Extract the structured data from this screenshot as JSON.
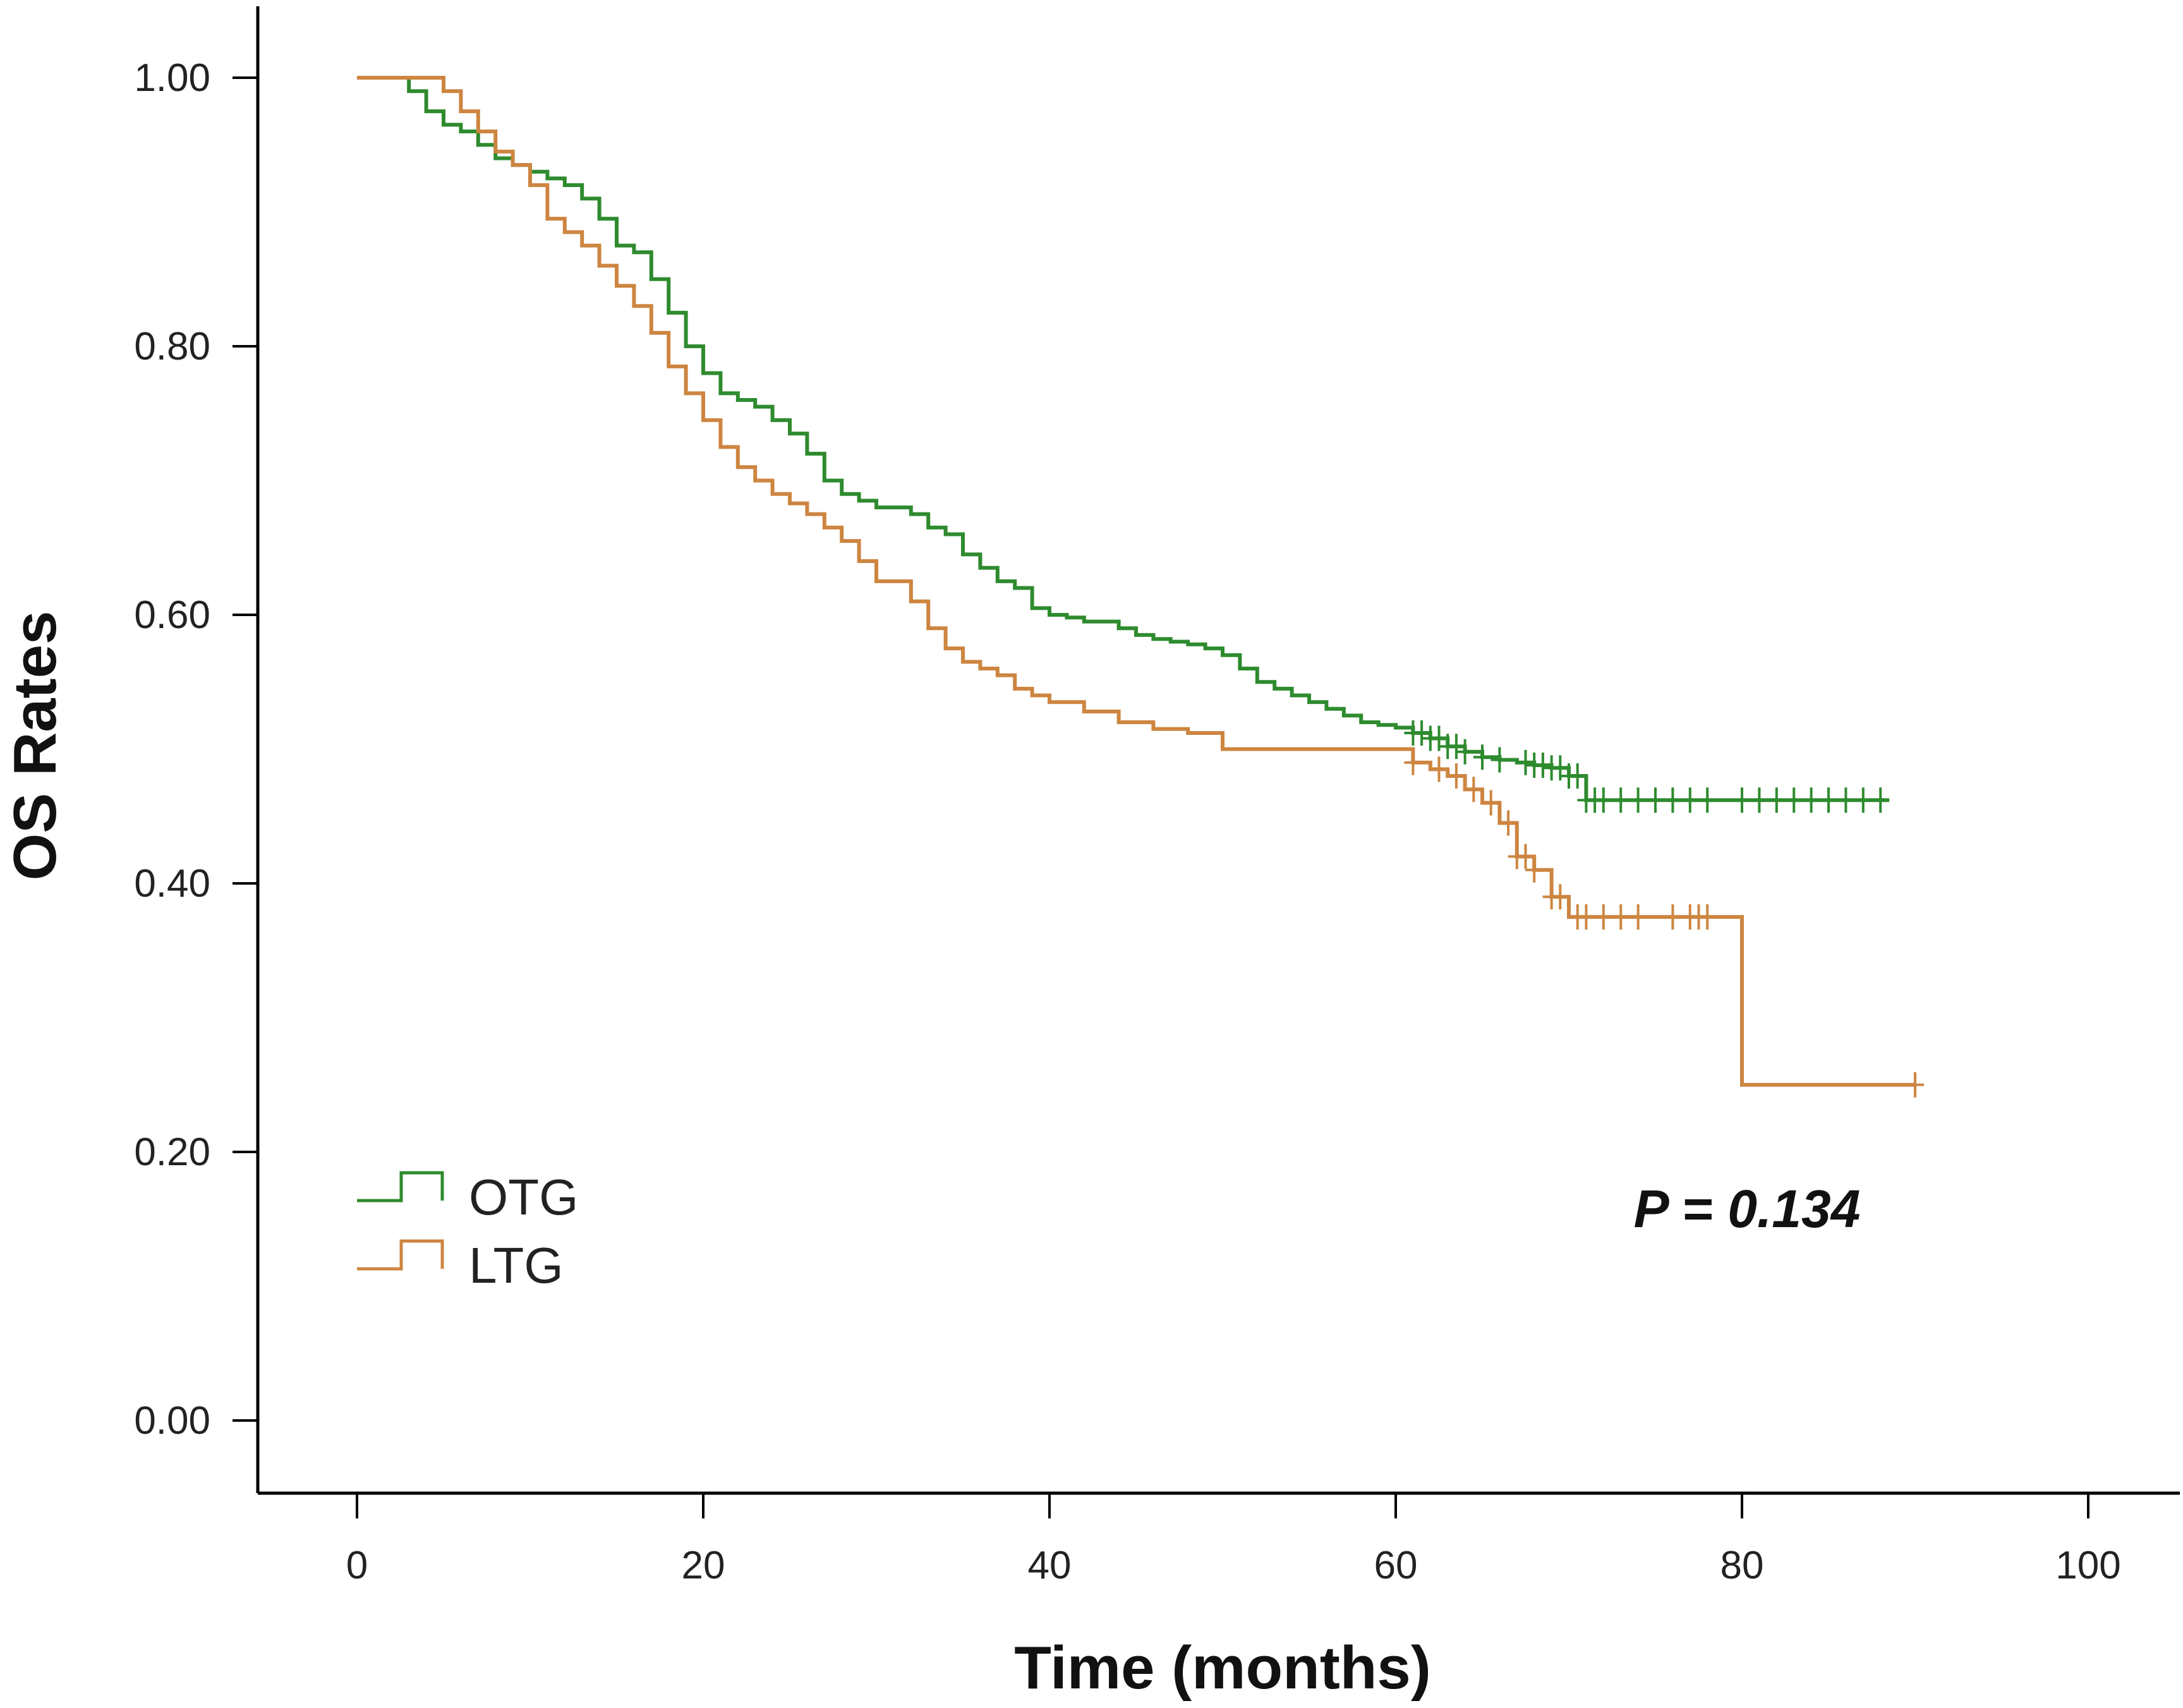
{
  "chart_data": {
    "type": "line",
    "title": "",
    "xlabel": "Time (months)",
    "ylabel": "OS Rates",
    "xlim": [
      0,
      100
    ],
    "ylim": [
      0,
      1
    ],
    "x_ticks": [
      0,
      20,
      40,
      60,
      80,
      100
    ],
    "y_ticks": [
      0,
      0.2,
      0.4,
      0.6,
      0.8,
      1.0
    ],
    "x_tick_labels": [
      "0",
      "20",
      "40",
      "60",
      "80",
      "100"
    ],
    "y_tick_labels": [
      "0.00",
      "0.20",
      "0.40",
      "0.60",
      "0.80",
      "1.00"
    ],
    "annotation": "P = 0.134",
    "grid": false,
    "legend_position": "bottom-left",
    "series": [
      {
        "name": "OTG",
        "color": "#2e8b2e",
        "x": [
          0,
          1,
          2,
          3,
          4,
          5,
          6,
          7,
          8,
          9,
          10,
          11,
          12,
          13,
          14,
          15,
          16,
          17,
          18,
          19,
          20,
          21,
          22,
          23,
          24,
          25,
          26,
          27,
          28,
          29,
          30,
          31,
          32,
          33,
          34,
          35,
          36,
          37,
          38,
          39,
          40,
          41,
          42,
          43,
          44,
          45,
          46,
          47,
          48,
          49,
          50,
          51,
          52,
          53,
          54,
          55,
          56,
          57,
          58,
          59,
          60,
          61,
          62,
          63,
          64,
          65,
          66,
          67,
          68,
          69,
          70,
          71,
          72,
          88.5
        ],
        "y": [
          1.0,
          1.0,
          1.0,
          0.99,
          0.975,
          0.965,
          0.96,
          0.95,
          0.94,
          0.935,
          0.93,
          0.925,
          0.92,
          0.91,
          0.895,
          0.875,
          0.87,
          0.85,
          0.825,
          0.8,
          0.78,
          0.765,
          0.76,
          0.755,
          0.745,
          0.735,
          0.72,
          0.7,
          0.69,
          0.685,
          0.68,
          0.68,
          0.675,
          0.665,
          0.66,
          0.645,
          0.635,
          0.625,
          0.62,
          0.605,
          0.6,
          0.598,
          0.595,
          0.595,
          0.59,
          0.585,
          0.582,
          0.58,
          0.578,
          0.575,
          0.57,
          0.56,
          0.55,
          0.545,
          0.54,
          0.535,
          0.53,
          0.525,
          0.52,
          0.518,
          0.516,
          0.512,
          0.508,
          0.502,
          0.498,
          0.494,
          0.492,
          0.49,
          0.488,
          0.486,
          0.48,
          0.462,
          0.462,
          0.462
        ],
        "censored_x": [
          61,
          61.5,
          62,
          62.5,
          63,
          63.5,
          64,
          65,
          66,
          67.5,
          68,
          68.5,
          69,
          69.5,
          70,
          70.5,
          71,
          71.5,
          72,
          73,
          74,
          75,
          76,
          77,
          78,
          80,
          81,
          82,
          83,
          84,
          85,
          86,
          87,
          88
        ]
      },
      {
        "name": "LTG",
        "color": "#cd8540",
        "x": [
          0,
          1,
          2,
          3,
          4,
          5,
          6,
          7,
          8,
          9,
          10,
          11,
          12,
          13,
          14,
          15,
          16,
          17,
          18,
          19,
          20,
          21,
          22,
          23,
          24,
          25,
          26,
          27,
          28,
          29,
          30,
          31,
          32,
          33,
          34,
          35,
          36,
          37,
          38,
          39,
          40,
          42,
          44,
          46,
          48,
          50,
          55,
          60,
          61,
          62,
          63,
          64,
          65,
          66,
          67,
          68,
          69,
          70,
          72,
          75,
          78,
          80,
          90
        ],
        "y": [
          1.0,
          1.0,
          1.0,
          1.0,
          1.0,
          0.99,
          0.975,
          0.96,
          0.945,
          0.935,
          0.92,
          0.895,
          0.885,
          0.875,
          0.86,
          0.845,
          0.83,
          0.81,
          0.785,
          0.765,
          0.745,
          0.725,
          0.71,
          0.7,
          0.69,
          0.683,
          0.675,
          0.665,
          0.655,
          0.64,
          0.625,
          0.625,
          0.61,
          0.59,
          0.575,
          0.565,
          0.56,
          0.555,
          0.545,
          0.54,
          0.535,
          0.528,
          0.52,
          0.515,
          0.512,
          0.5,
          0.5,
          0.5,
          0.49,
          0.485,
          0.48,
          0.47,
          0.46,
          0.445,
          0.42,
          0.41,
          0.39,
          0.375,
          0.375,
          0.375,
          0.375,
          0.25,
          0.25
        ],
        "censored_x": [
          61,
          62.5,
          63.5,
          64.5,
          65.5,
          66.5,
          67,
          67.5,
          68,
          69,
          69.5,
          70.5,
          71,
          72,
          73,
          74,
          76,
          77,
          77.5,
          78,
          90
        ]
      }
    ]
  }
}
